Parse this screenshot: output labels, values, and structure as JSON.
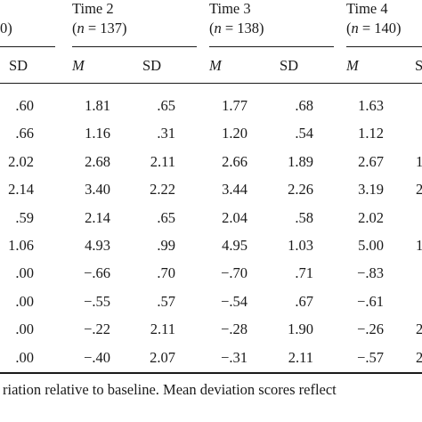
{
  "header": {
    "col0_fragment": "0)",
    "groups": [
      {
        "time": "Time 2",
        "n_prefix": "(",
        "n_var": "n",
        "n_rest": " = 137)"
      },
      {
        "time": "Time 3",
        "n_prefix": "(",
        "n_var": "n",
        "n_rest": " = 138)"
      },
      {
        "time": "Time 4",
        "n_prefix": "(",
        "n_var": "n",
        "n_rest": " = 140)"
      }
    ],
    "subheaders": {
      "sd0": "SD",
      "m2": "M",
      "sd2": "SD",
      "m3": "M",
      "sd3": "SD",
      "m4": "M",
      "sd4_fragment": "S"
    }
  },
  "rows": [
    {
      "sd1": ".60",
      "m2": "1.81",
      "sd2": ".65",
      "m3": "1.77",
      "sd3": ".68",
      "m4": "1.63",
      "edge": ""
    },
    {
      "sd1": ".66",
      "m2": "1.16",
      "sd2": ".31",
      "m3": "1.20",
      "sd3": ".54",
      "m4": "1.12",
      "edge": ""
    },
    {
      "sd1": "2.02",
      "m2": "2.68",
      "sd2": "2.11",
      "m3": "2.66",
      "sd3": "1.89",
      "m4": "2.67",
      "edge": "1"
    },
    {
      "sd1": "2.14",
      "m2": "3.40",
      "sd2": "2.22",
      "m3": "3.44",
      "sd3": "2.26",
      "m4": "3.19",
      "edge": "2"
    },
    {
      "sd1": ".59",
      "m2": "2.14",
      "sd2": ".65",
      "m3": "2.04",
      "sd3": ".58",
      "m4": "2.02",
      "edge": ""
    },
    {
      "sd1": "1.06",
      "m2": "4.93",
      "sd2": ".99",
      "m3": "4.95",
      "sd3": "1.03",
      "m4": "5.00",
      "edge": "1"
    },
    {
      "sd1": ".00",
      "m2": "−.66",
      "sd2": ".70",
      "m3": "−.70",
      "sd3": ".71",
      "m4": "−.83",
      "edge": ""
    },
    {
      "sd1": ".00",
      "m2": "−.55",
      "sd2": ".57",
      "m3": "−.54",
      "sd3": ".67",
      "m4": "−.61",
      "edge": ""
    },
    {
      "sd1": ".00",
      "m2": "−.22",
      "sd2": "2.11",
      "m3": "−.28",
      "sd3": "1.90",
      "m4": "−.26",
      "edge": "2"
    },
    {
      "sd1": ".00",
      "m2": "−.40",
      "sd2": "2.07",
      "m3": "−.31",
      "sd3": "2.11",
      "m4": "−.57",
      "edge": "2"
    }
  ],
  "footnote": "riation relative to baseline. Mean deviation scores reflect"
}
